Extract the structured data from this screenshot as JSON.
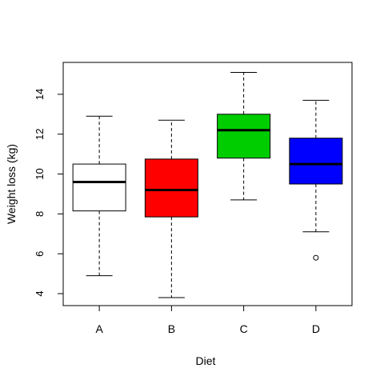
{
  "chart_data": {
    "type": "boxplot",
    "title": "",
    "xlabel": "Diet",
    "ylabel": "Weight loss (kg)",
    "categories": [
      "A",
      "B",
      "C",
      "D"
    ],
    "ylim": [
      3.4,
      15.6
    ],
    "yticks": [
      4,
      6,
      8,
      10,
      12,
      14
    ],
    "grid": false,
    "boxes": [
      {
        "category": "A",
        "fill": "#ffffff",
        "whisker_low": 4.9,
        "q1": 8.15,
        "median": 9.6,
        "q3": 10.5,
        "whisker_high": 12.9,
        "outliers": []
      },
      {
        "category": "B",
        "fill": "#ff0000",
        "whisker_low": 3.8,
        "q1": 7.85,
        "median": 9.2,
        "q3": 10.75,
        "whisker_high": 12.7,
        "outliers": []
      },
      {
        "category": "C",
        "fill": "#00cd00",
        "whisker_low": 8.7,
        "q1": 10.8,
        "median": 12.2,
        "q3": 13.0,
        "whisker_high": 15.1,
        "outliers": []
      },
      {
        "category": "D",
        "fill": "#0000ff",
        "whisker_low": 7.1,
        "q1": 9.5,
        "median": 10.5,
        "q3": 11.8,
        "whisker_high": 13.7,
        "outliers": [
          5.8
        ]
      }
    ]
  }
}
